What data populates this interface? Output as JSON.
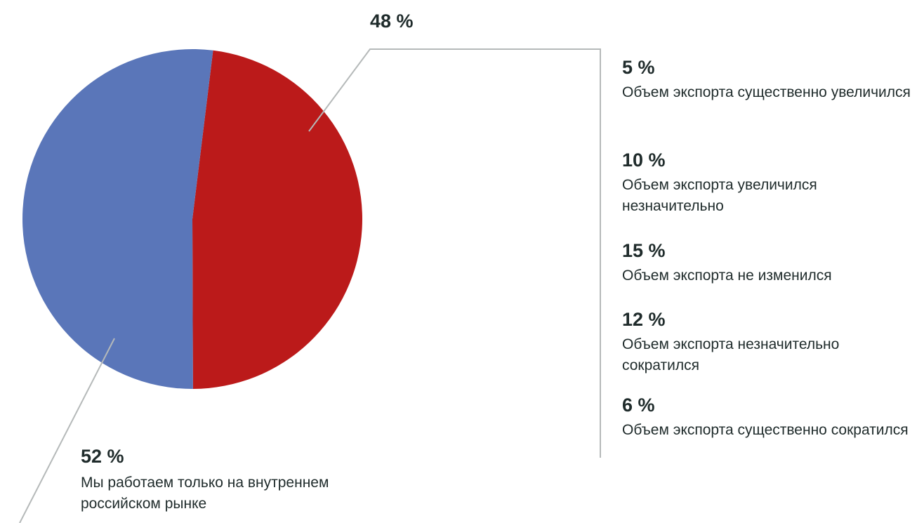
{
  "chart_data": {
    "type": "pie",
    "categories": [
      null,
      "Мы работаем только на внутреннем российском рынке"
    ],
    "values": [
      48,
      52
    ],
    "value_labels": [
      "48 %",
      "52 %"
    ],
    "colors": [
      "#bb1a1a",
      "#5a76b9"
    ],
    "breakdown": [
      {
        "value_label": "5 %",
        "label": "Объем экспорта существенно увеличился"
      },
      {
        "value_label": "10 %",
        "label": "Объем экспорта увеличился незначительно"
      },
      {
        "value_label": "15 %",
        "label": "Объем экспорта не изменился"
      },
      {
        "value_label": "12 %",
        "label": "Объем экспорта незначительно сократился"
      },
      {
        "value_label": "6 %",
        "label": "Объем экспорта существенно сократился"
      }
    ]
  }
}
